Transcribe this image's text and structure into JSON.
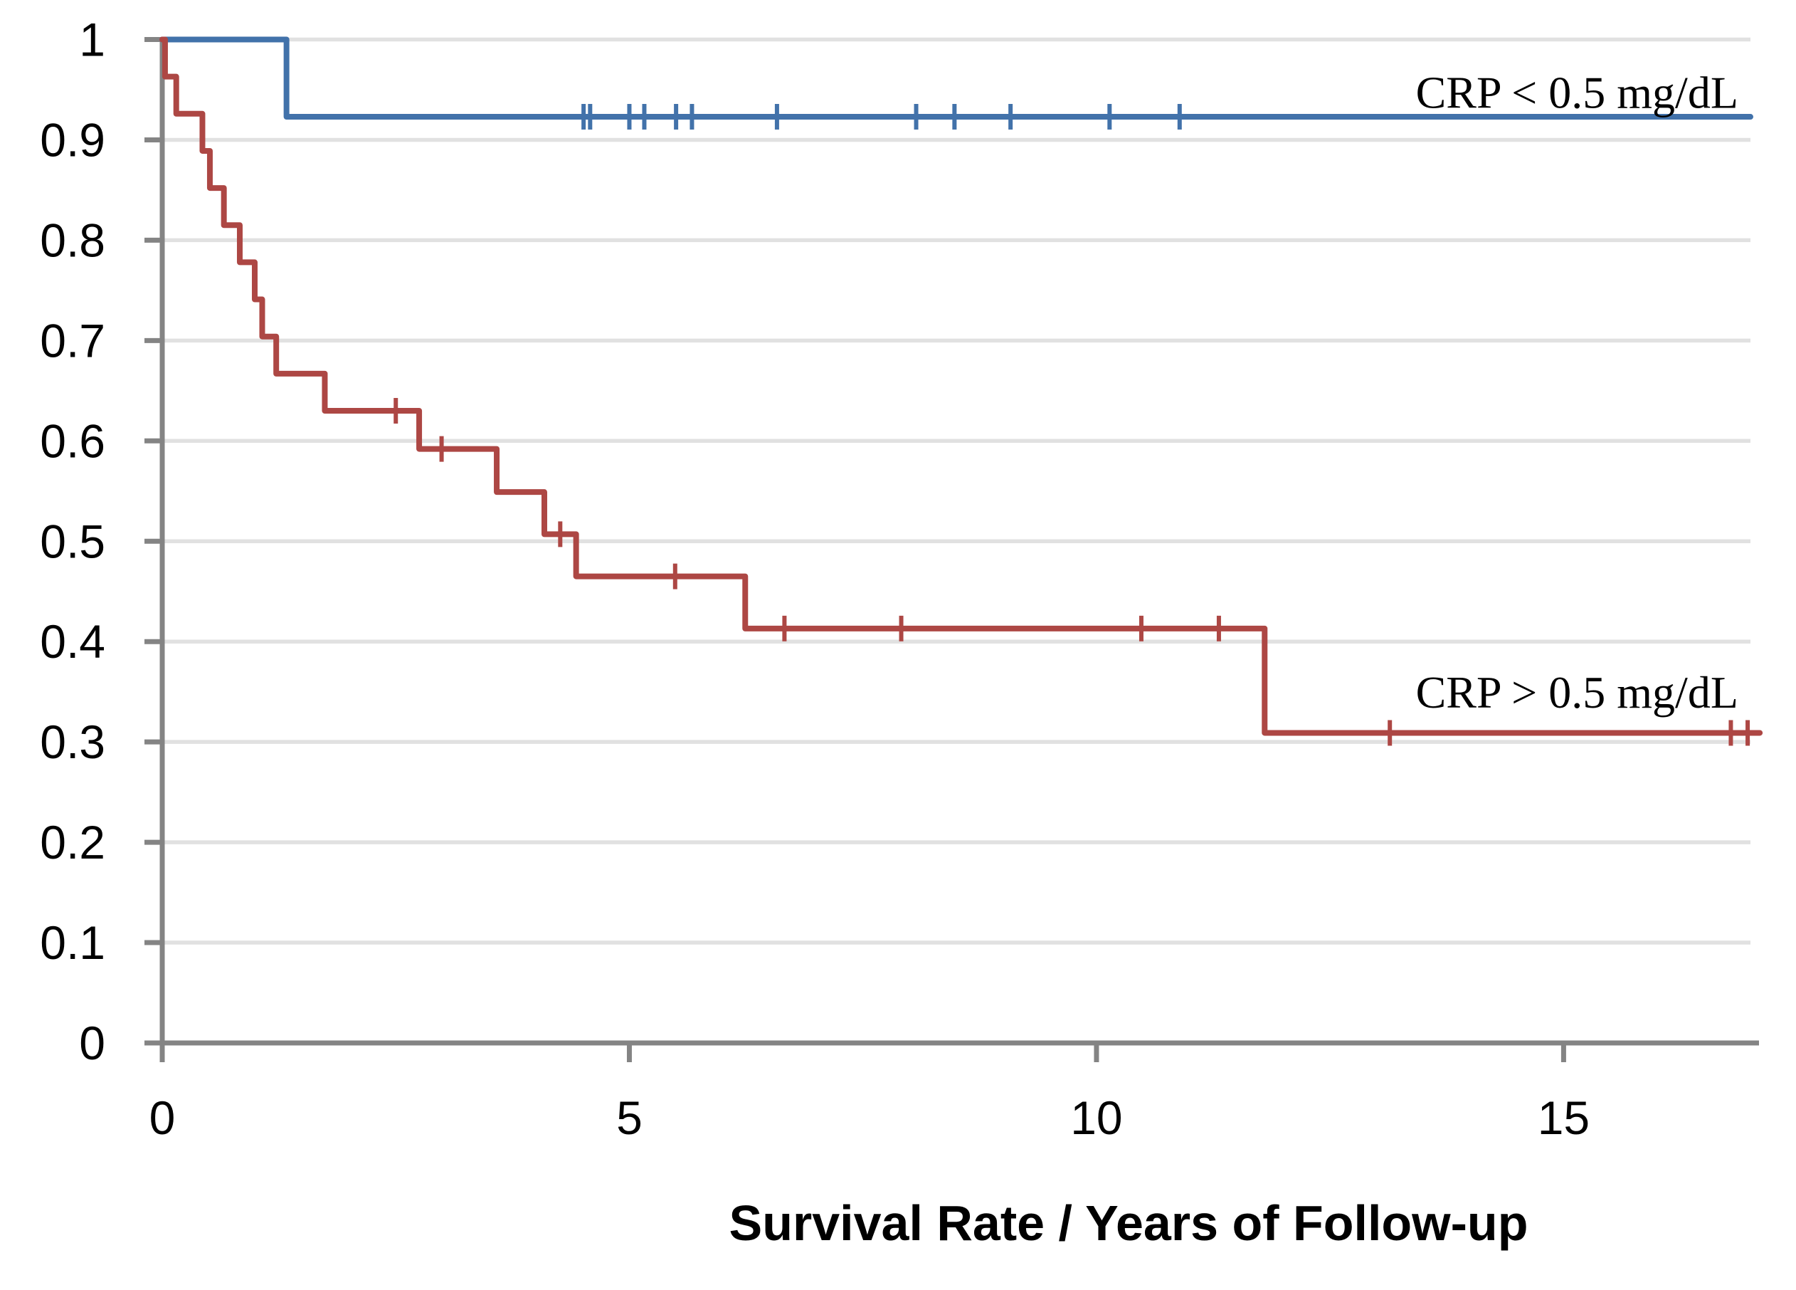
{
  "chart_data": {
    "type": "line",
    "subtype": "kaplan-meier-step",
    "title": "",
    "xlabel": "Survival Rate / Years of Follow-up",
    "ylabel": "",
    "xlim": [
      0,
      17
    ],
    "ylim": [
      0,
      1
    ],
    "x_ticks": [
      0,
      5,
      10,
      15
    ],
    "x_tick_labels": [
      "0",
      "5",
      "10",
      "15"
    ],
    "y_ticks": [
      0,
      0.1,
      0.2,
      0.3,
      0.4,
      0.5,
      0.6,
      0.7,
      0.8,
      0.9,
      1
    ],
    "y_tick_labels": [
      "0",
      "0.1",
      "0.2",
      "0.3",
      "0.4",
      "0.5",
      "0.6",
      "0.7",
      "0.8",
      "0.9",
      "1"
    ],
    "grid": true,
    "legend_position": "inline-annotations",
    "colors": {
      "grid": "#E1E1E1",
      "axis": "#848484",
      "text": "#000000"
    },
    "series": [
      {
        "name": "CRP < 0.5 mg/dL",
        "color": "#4272AA",
        "points": [
          [
            0,
            1.0
          ],
          [
            1.33,
            0.923
          ]
        ],
        "end_x": 17.0,
        "censors": [
          [
            4.51,
            0.923
          ],
          [
            4.58,
            0.923
          ],
          [
            5.0,
            0.923
          ],
          [
            5.16,
            0.923
          ],
          [
            5.5,
            0.923
          ],
          [
            5.67,
            0.923
          ],
          [
            6.58,
            0.923
          ],
          [
            8.07,
            0.923
          ],
          [
            8.48,
            0.923
          ],
          [
            9.08,
            0.923
          ],
          [
            10.14,
            0.923
          ],
          [
            10.89,
            0.923
          ]
        ],
        "label_anchor": {
          "x": 16.87,
          "y": 0.932
        }
      },
      {
        "name": "CRP > 0.5 mg/dL",
        "color": "#AD4744",
        "points": [
          [
            0,
            1.0
          ],
          [
            0.03,
            0.963
          ],
          [
            0.15,
            0.926
          ],
          [
            0.43,
            0.889
          ],
          [
            0.51,
            0.852
          ],
          [
            0.66,
            0.815
          ],
          [
            0.83,
            0.778
          ],
          [
            0.99,
            0.741
          ],
          [
            1.07,
            0.704
          ],
          [
            1.22,
            0.667
          ],
          [
            1.74,
            0.63
          ],
          [
            2.75,
            0.592
          ],
          [
            3.58,
            0.549
          ],
          [
            4.09,
            0.507
          ],
          [
            4.43,
            0.465
          ],
          [
            6.24,
            0.413
          ],
          [
            11.8,
            0.309
          ]
        ],
        "end_x": 17.1,
        "censors": [
          [
            2.5,
            0.63
          ],
          [
            2.99,
            0.592
          ],
          [
            4.26,
            0.507
          ],
          [
            5.49,
            0.465
          ],
          [
            6.66,
            0.413
          ],
          [
            7.91,
            0.413
          ],
          [
            10.48,
            0.413
          ],
          [
            11.31,
            0.413
          ],
          [
            13.14,
            0.309
          ],
          [
            16.79,
            0.309
          ],
          [
            16.97,
            0.309
          ]
        ],
        "label_anchor": {
          "x": 16.87,
          "y": 0.334
        }
      }
    ]
  }
}
